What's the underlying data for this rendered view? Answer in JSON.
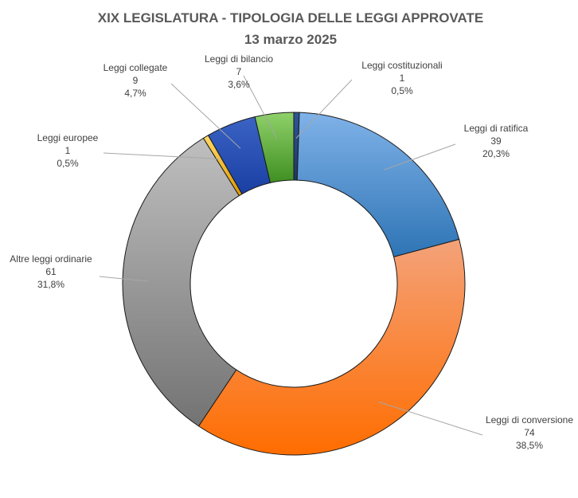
{
  "chart_data": {
    "type": "pie",
    "style": "donut",
    "title": "XIX LEGISLATURA - TIPOLOGIA DELLE LEGGI APPROVATE",
    "subtitle": "13 marzo 2025",
    "legend": "none",
    "categories": [
      "Leggi costituzionali",
      "Leggi di ratifica",
      "Leggi di conversione",
      "Altre leggi ordinarie",
      "Leggi europee",
      "Leggi collegate",
      "Leggi di bilancio"
    ],
    "values": [
      1,
      39,
      74,
      61,
      1,
      9,
      7
    ],
    "percent_labels": [
      "0,5%",
      "20,3%",
      "38,5%",
      "31,8%",
      "0,5%",
      "4,7%",
      "3,6%"
    ],
    "colors": [
      [
        "#2f5597",
        "#1f3864"
      ],
      [
        "#7fb2e8",
        "#2e74b5"
      ],
      [
        "#f4a27a",
        "#ff6d00"
      ],
      [
        "#bfbfbf",
        "#737373"
      ],
      [
        "#ffd966",
        "#e09a00"
      ],
      [
        "#3a63c4",
        "#1a3fa3"
      ],
      [
        "#8fd16a",
        "#3f8f22"
      ]
    ]
  }
}
